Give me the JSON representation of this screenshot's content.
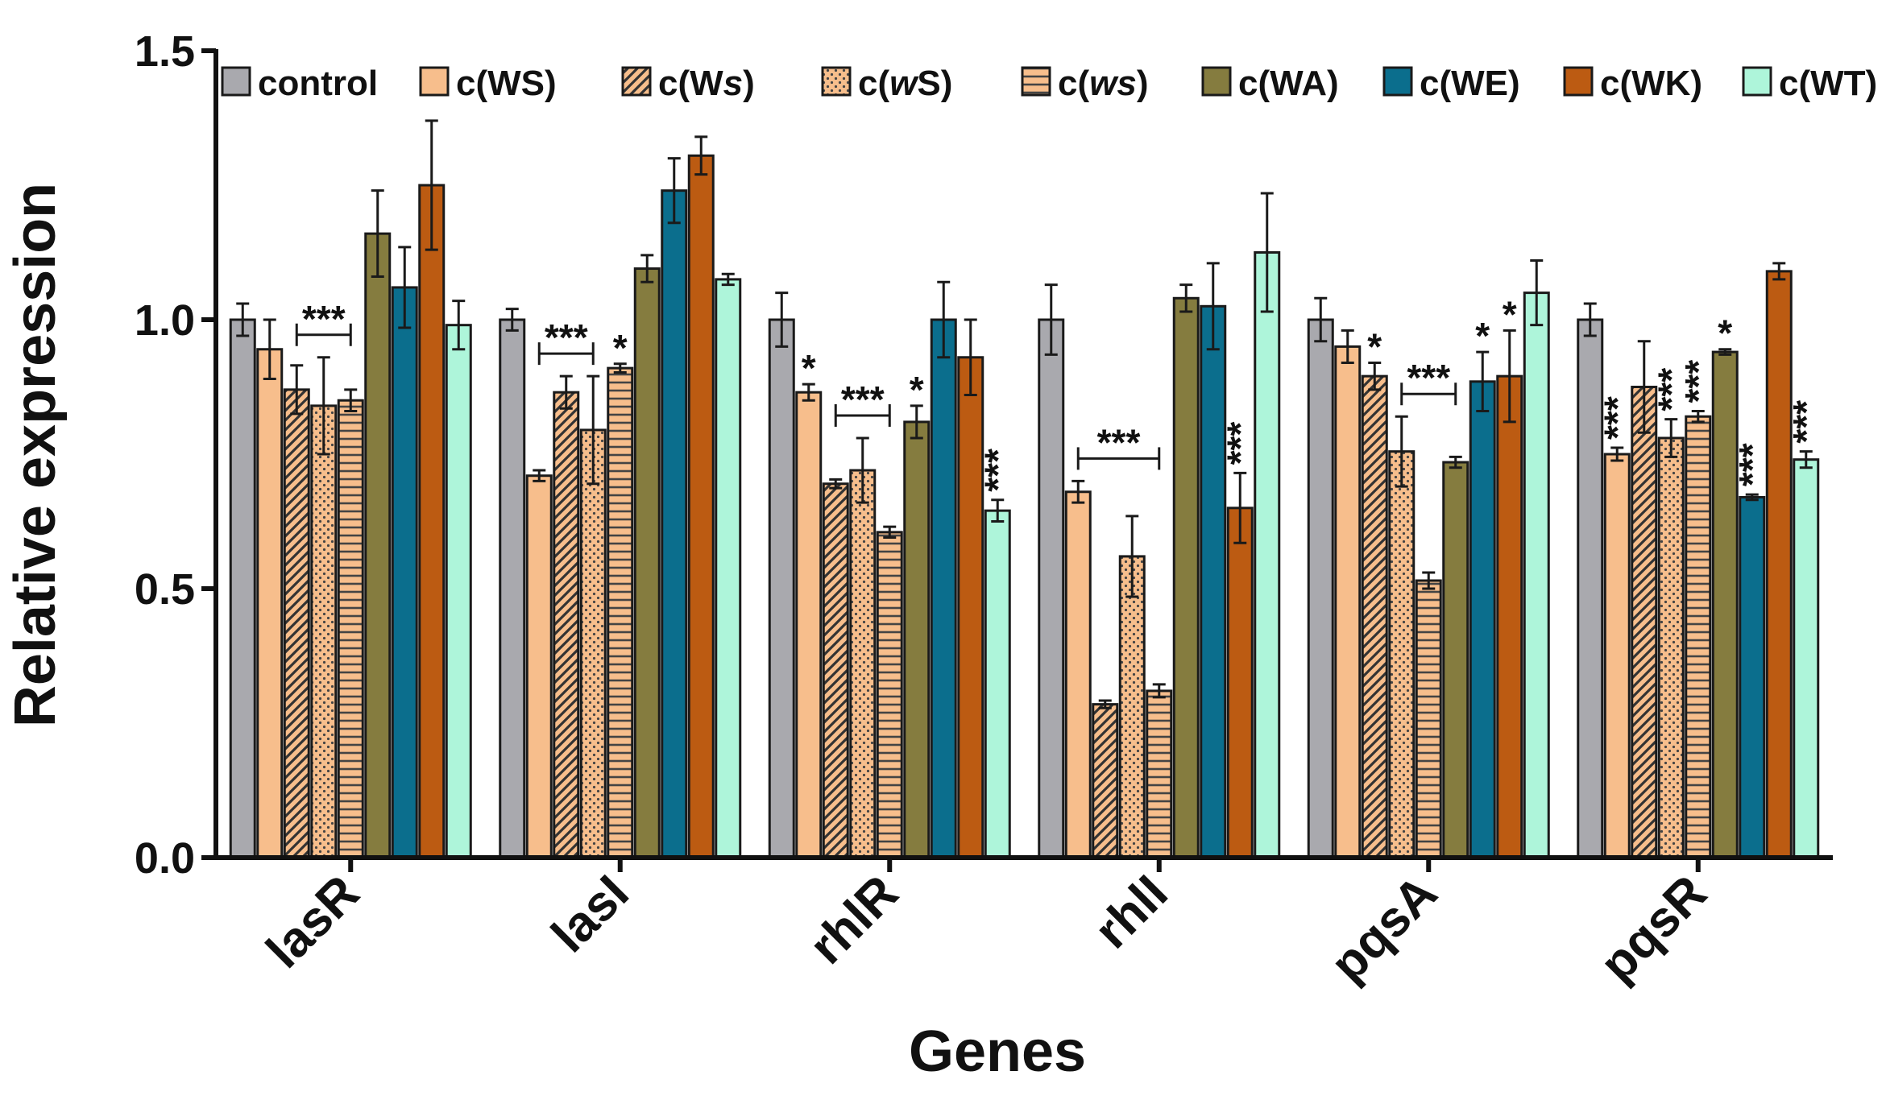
{
  "chart_data": {
    "type": "bar",
    "title": "",
    "xlabel": "Genes",
    "ylabel": "Relative expression",
    "ylim": [
      0,
      1.5
    ],
    "yticks": [
      "0.0",
      "0.5",
      "1.0",
      "1.5"
    ],
    "ytick_values": [
      0,
      0.5,
      1.0,
      1.5
    ],
    "categories": [
      "lasR",
      "lasI",
      "rhlR",
      "rhlI",
      "pqsA",
      "pqsR"
    ],
    "series": [
      {
        "name": "control",
        "label_parts": [
          {
            "t": "control"
          }
        ],
        "color": "#A9A9AE",
        "pattern": "solid",
        "values": [
          1.0,
          1.0,
          1.0,
          1.0,
          1.0,
          1.0
        ],
        "errors": [
          0.03,
          0.02,
          0.05,
          0.065,
          0.04,
          0.03
        ]
      },
      {
        "name": "c(WS)",
        "label_parts": [
          {
            "t": "c(WS)"
          }
        ],
        "color": "#F7BE8C",
        "pattern": "solid",
        "values": [
          0.945,
          0.71,
          0.865,
          0.68,
          0.95,
          0.75
        ],
        "errors": [
          0.055,
          0.01,
          0.015,
          0.02,
          0.03,
          0.012
        ]
      },
      {
        "name": "c(Ws)",
        "label_parts": [
          {
            "t": "c(W"
          },
          {
            "t": "s",
            "italic": true
          },
          {
            "t": ")"
          }
        ],
        "color": "#F7BE8C",
        "pattern": "diag",
        "values": [
          0.87,
          0.865,
          0.695,
          0.285,
          0.895,
          0.875
        ],
        "errors": [
          0.045,
          0.03,
          0.008,
          0.007,
          0.025,
          0.085
        ]
      },
      {
        "name": "c(wS)",
        "label_parts": [
          {
            "t": "c("
          },
          {
            "t": "w",
            "italic": true
          },
          {
            "t": "S)"
          }
        ],
        "color": "#F7BE8C",
        "pattern": "dots",
        "values": [
          0.84,
          0.795,
          0.72,
          0.56,
          0.755,
          0.78
        ],
        "errors": [
          0.09,
          0.1,
          0.06,
          0.075,
          0.065,
          0.035
        ]
      },
      {
        "name": "c(ws)",
        "label_parts": [
          {
            "t": "c("
          },
          {
            "t": "ws",
            "italic": true
          },
          {
            "t": ")"
          }
        ],
        "color": "#F7BE8C",
        "pattern": "hlines",
        "values": [
          0.85,
          0.91,
          0.605,
          0.31,
          0.515,
          0.82
        ],
        "errors": [
          0.02,
          0.008,
          0.01,
          0.012,
          0.015,
          0.01
        ]
      },
      {
        "name": "c(WA)",
        "label_parts": [
          {
            "t": "c(WA)"
          }
        ],
        "color": "#857C3F",
        "pattern": "solid",
        "values": [
          1.16,
          1.095,
          0.81,
          1.04,
          0.735,
          0.94
        ],
        "errors": [
          0.08,
          0.025,
          0.03,
          0.025,
          0.01,
          0.005
        ]
      },
      {
        "name": "c(WE)",
        "label_parts": [
          {
            "t": "c(WE)"
          }
        ],
        "color": "#0B6E8D",
        "pattern": "solid",
        "values": [
          1.06,
          1.24,
          1.0,
          1.025,
          0.885,
          0.67
        ],
        "errors": [
          0.075,
          0.06,
          0.07,
          0.08,
          0.055,
          0.005
        ]
      },
      {
        "name": "c(WK)",
        "label_parts": [
          {
            "t": "c(WK)"
          }
        ],
        "color": "#BC5B12",
        "pattern": "solid",
        "values": [
          1.25,
          1.305,
          0.93,
          0.65,
          0.895,
          1.09
        ],
        "errors": [
          0.12,
          0.035,
          0.07,
          0.065,
          0.085,
          0.015
        ]
      },
      {
        "name": "c(WT)",
        "label_parts": [
          {
            "t": "c(WT)"
          }
        ],
        "color": "#AEF5DA",
        "pattern": "solid",
        "values": [
          0.99,
          1.075,
          0.645,
          1.125,
          1.05,
          0.74
        ],
        "errors": [
          0.045,
          0.01,
          0.02,
          0.11,
          0.06,
          0.015
        ]
      }
    ],
    "annotations": [
      {
        "category": "lasR",
        "type": "bracket",
        "from": 2,
        "to": 4,
        "label": "***"
      },
      {
        "category": "lasI",
        "type": "bracket",
        "from": 1,
        "to": 3,
        "label": "***"
      },
      {
        "category": "lasI",
        "type": "star",
        "series": 4,
        "label": "*"
      },
      {
        "category": "rhlR",
        "type": "star",
        "series": 1,
        "label": "*"
      },
      {
        "category": "rhlR",
        "type": "bracket",
        "from": 2,
        "to": 4,
        "label": "***"
      },
      {
        "category": "rhlR",
        "type": "star",
        "series": 5,
        "label": "*"
      },
      {
        "category": "rhlR",
        "type": "vstar",
        "series": 8,
        "label": "***"
      },
      {
        "category": "rhlI",
        "type": "bracket",
        "from": 1,
        "to": 4,
        "label": "***"
      },
      {
        "category": "rhlI",
        "type": "vstar",
        "series": 7,
        "label": "***"
      },
      {
        "category": "pqsA",
        "type": "star",
        "series": 2,
        "label": "*"
      },
      {
        "category": "pqsA",
        "type": "bracket",
        "from": 3,
        "to": 5,
        "label": "***"
      },
      {
        "category": "pqsA",
        "type": "star",
        "series": 6,
        "label": "*"
      },
      {
        "category": "pqsA",
        "type": "star",
        "series": 7,
        "label": "*"
      },
      {
        "category": "pqsR",
        "type": "vstar",
        "series": 1,
        "label": "***"
      },
      {
        "category": "pqsR",
        "type": "vstar",
        "series": 3,
        "label": "***"
      },
      {
        "category": "pqsR",
        "type": "vstar",
        "series": 4,
        "label": "***"
      },
      {
        "category": "pqsR",
        "type": "star",
        "series": 5,
        "label": "*"
      },
      {
        "category": "pqsR",
        "type": "vstar",
        "series": 6,
        "label": "***"
      },
      {
        "category": "pqsR",
        "type": "vstar",
        "series": 8,
        "label": "***"
      }
    ],
    "legend_position": "top",
    "grid": false
  }
}
